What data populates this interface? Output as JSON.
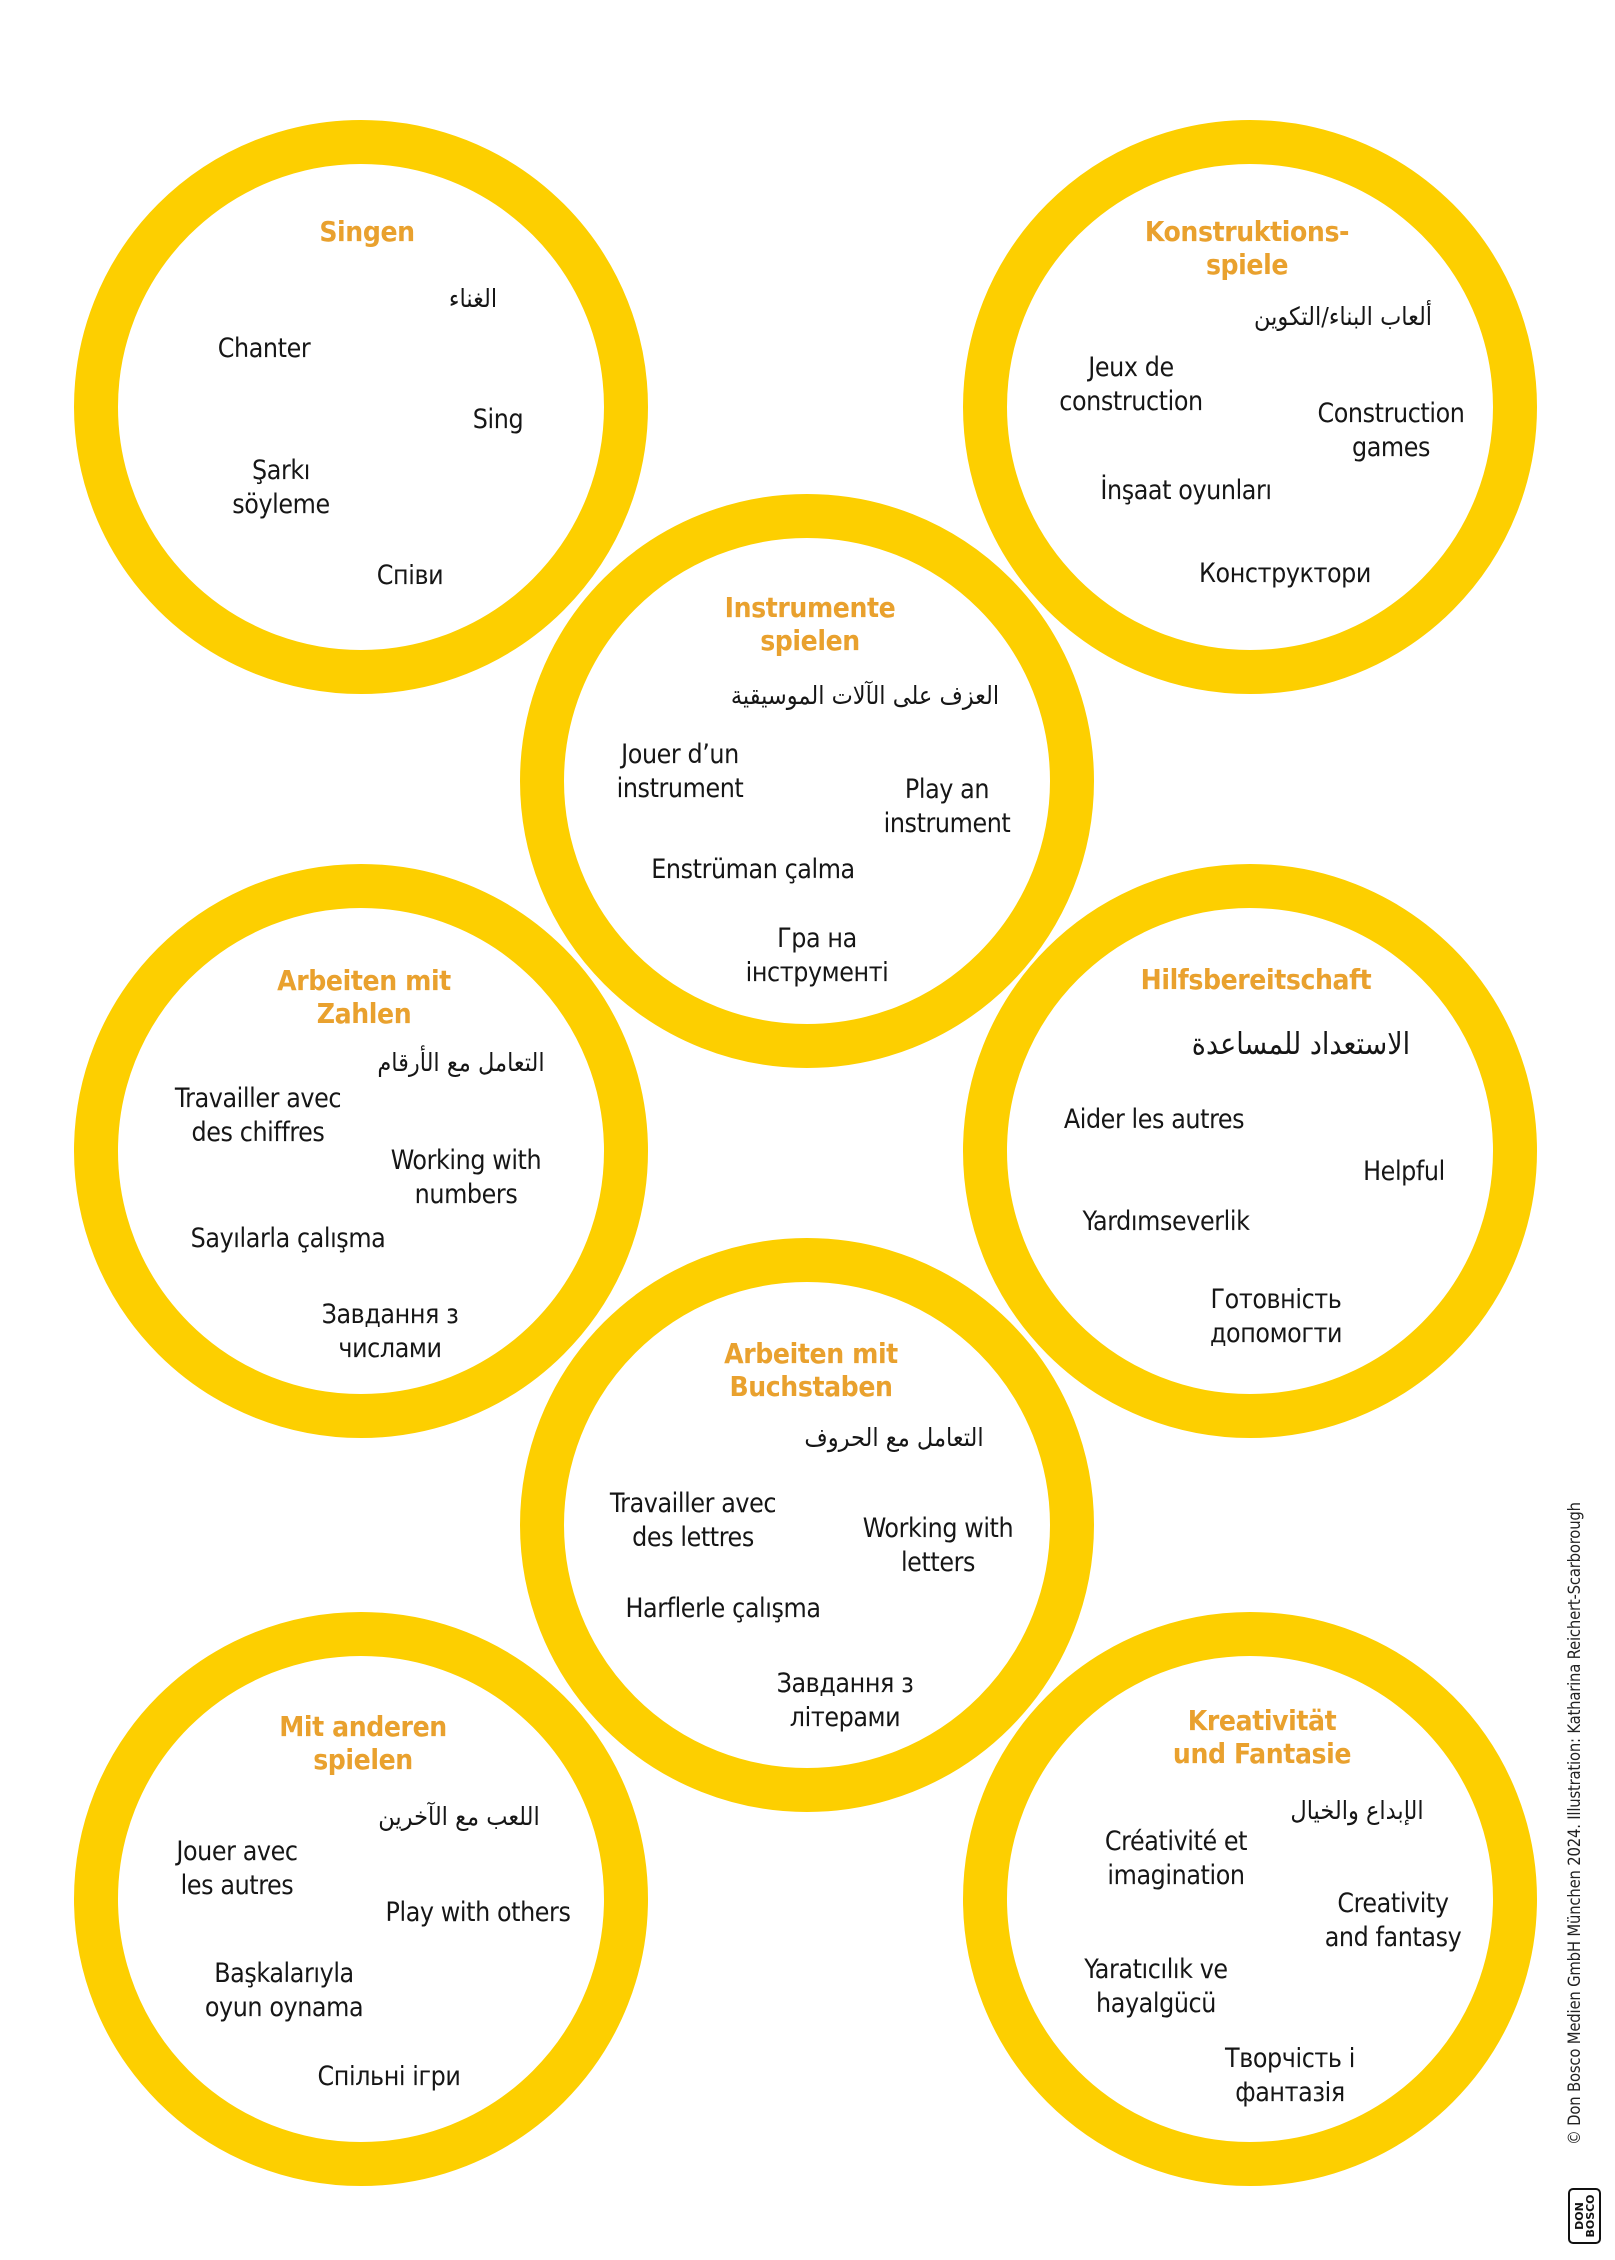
{
  "circles": [
    {
      "title": "Singen",
      "arabic": "الغناء",
      "french": "Chanter",
      "english": "Sing",
      "turkish": "Şarkı\nsöyleme",
      "ukrainian": "Співи"
    },
    {
      "title": "Konstruktions-\nspiele",
      "arabic": "ألعاب البناء/التكوين",
      "french": "Jeux de\nconstruction",
      "english": "Construction\ngames",
      "turkish": "İnşaat oyunları",
      "ukrainian": "Конструктори"
    },
    {
      "title": "Instrumente\nspielen",
      "arabic": "العزف على الآلات الموسيقية",
      "french": "Jouer d’un\ninstrument",
      "english": "Play an\ninstrument",
      "turkish": "Enstrüman çalma",
      "ukrainian": "Гра на\nінструменті"
    },
    {
      "title": "Arbeiten mit\nZahlen",
      "arabic": "التعامل مع الأرقام",
      "french": "Travailler avec\ndes chiffres",
      "english": "Working with\nnumbers",
      "turkish": "Sayılarla çalışma",
      "ukrainian": "Завдання з\nчислами"
    },
    {
      "title": "Hilfsbereitschaft",
      "arabic": "الاستعداد للمساعدة",
      "french": "Aider les autres",
      "english": "Helpful",
      "turkish": "Yardımseverlik",
      "ukrainian": "Готовність\nдопомогти"
    },
    {
      "title": "Arbeiten mit\nBuchstaben",
      "arabic": "التعامل مع الحروف",
      "french": "Travailler avec\ndes lettres",
      "english": "Working with\nletters",
      "turkish": "Harflerle çalışma",
      "ukrainian": "Завдання з\nлітерами"
    },
    {
      "title": "Mit anderen\nspielen",
      "arabic": "اللعب مع الآخرين",
      "french": "Jouer avec\nles autres",
      "english": "Play with others",
      "turkish": "Başkalarıyla\noyun oynama",
      "ukrainian": "Спільні ігри"
    },
    {
      "title": "Kreativität\nund Fantasie",
      "arabic": "الإبداع والخيال",
      "french": "Créativité et\nimagination",
      "english": "Creativity\nand fantasy",
      "turkish": "Yaratıcılık ve\nhayalgücü",
      "ukrainian": "Творчість і\nфантазія"
    }
  ],
  "credit": "© Don Bosco Medien GmbH München 2024. Illustration: Katharina Reichert-Scarborough",
  "logo_text": "DON\nBOSCO",
  "colors": {
    "ring": "#FDCF00",
    "title": "#E9A12E",
    "text": "#161616"
  }
}
